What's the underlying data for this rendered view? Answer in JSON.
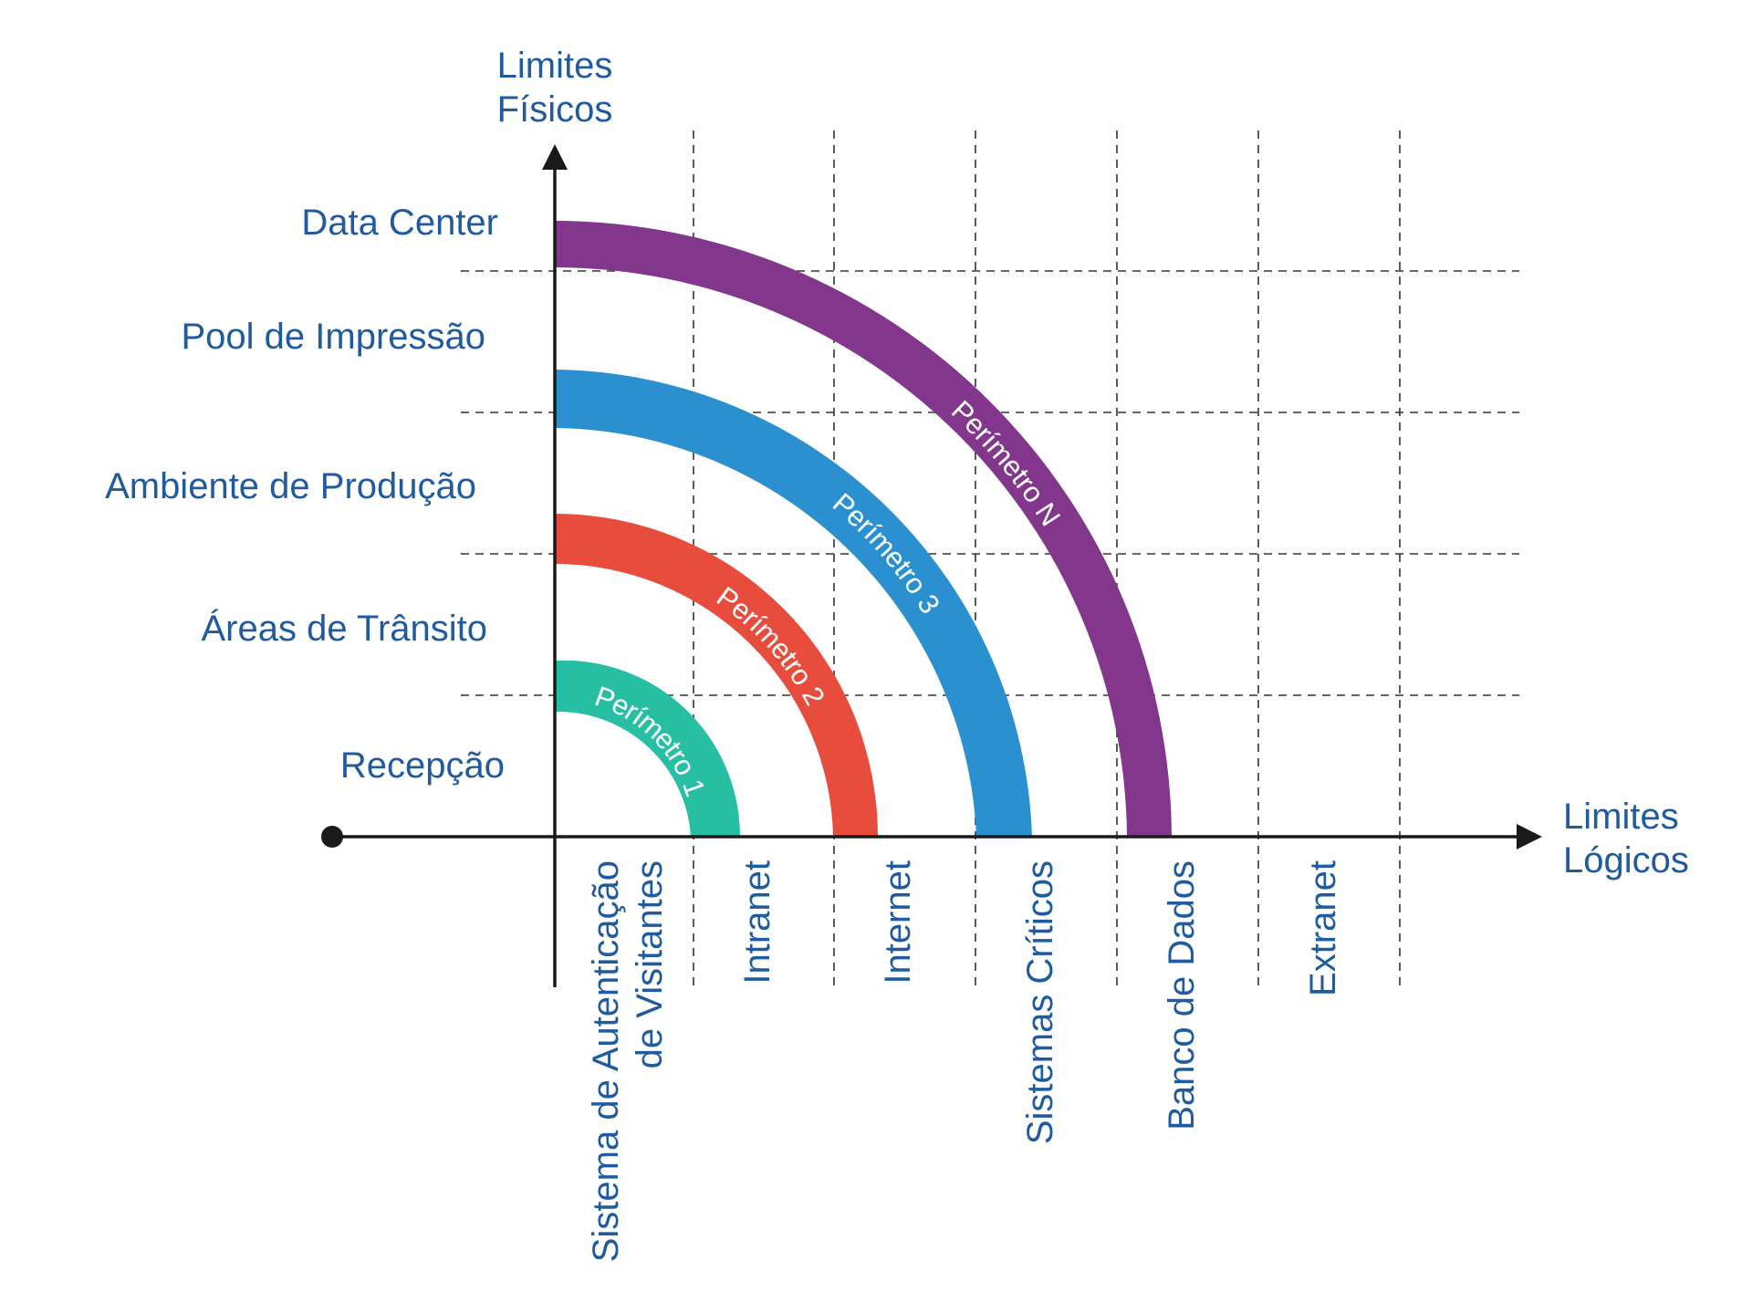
{
  "y_axis": {
    "title_line1": "Limites",
    "title_line2": "Físicos",
    "rows": [
      {
        "label": "Data Center"
      },
      {
        "label": "Pool de Impressão"
      },
      {
        "label": "Ambiente de Produção"
      },
      {
        "label": "Áreas de Trânsito"
      },
      {
        "label": "Recepção"
      }
    ]
  },
  "x_axis": {
    "title_line1": "Limites",
    "title_line2": "Lógicos",
    "columns": [
      {
        "line1": "Sistema de Autenticação",
        "line2": "de Visitantes"
      },
      {
        "line1": "Intranet",
        "line2": ""
      },
      {
        "line1": "Internet",
        "line2": ""
      },
      {
        "line1": "Sistemas Críticos",
        "line2": ""
      },
      {
        "line1": "Banco de Dados",
        "line2": ""
      },
      {
        "line1": "Extranet",
        "line2": ""
      }
    ]
  },
  "perimeters": [
    {
      "label": "Perímetro 1",
      "color": "#27bfa4"
    },
    {
      "label": "Perímetro 2",
      "color": "#e84c3d"
    },
    {
      "label": "Perímetro 3",
      "color": "#2b90d0"
    },
    {
      "label": "Perímetro N",
      "color": "#82368c"
    }
  ],
  "colors": {
    "text": "#1f5b9e",
    "axis": "#1a1a1a",
    "grid": "#333333"
  }
}
